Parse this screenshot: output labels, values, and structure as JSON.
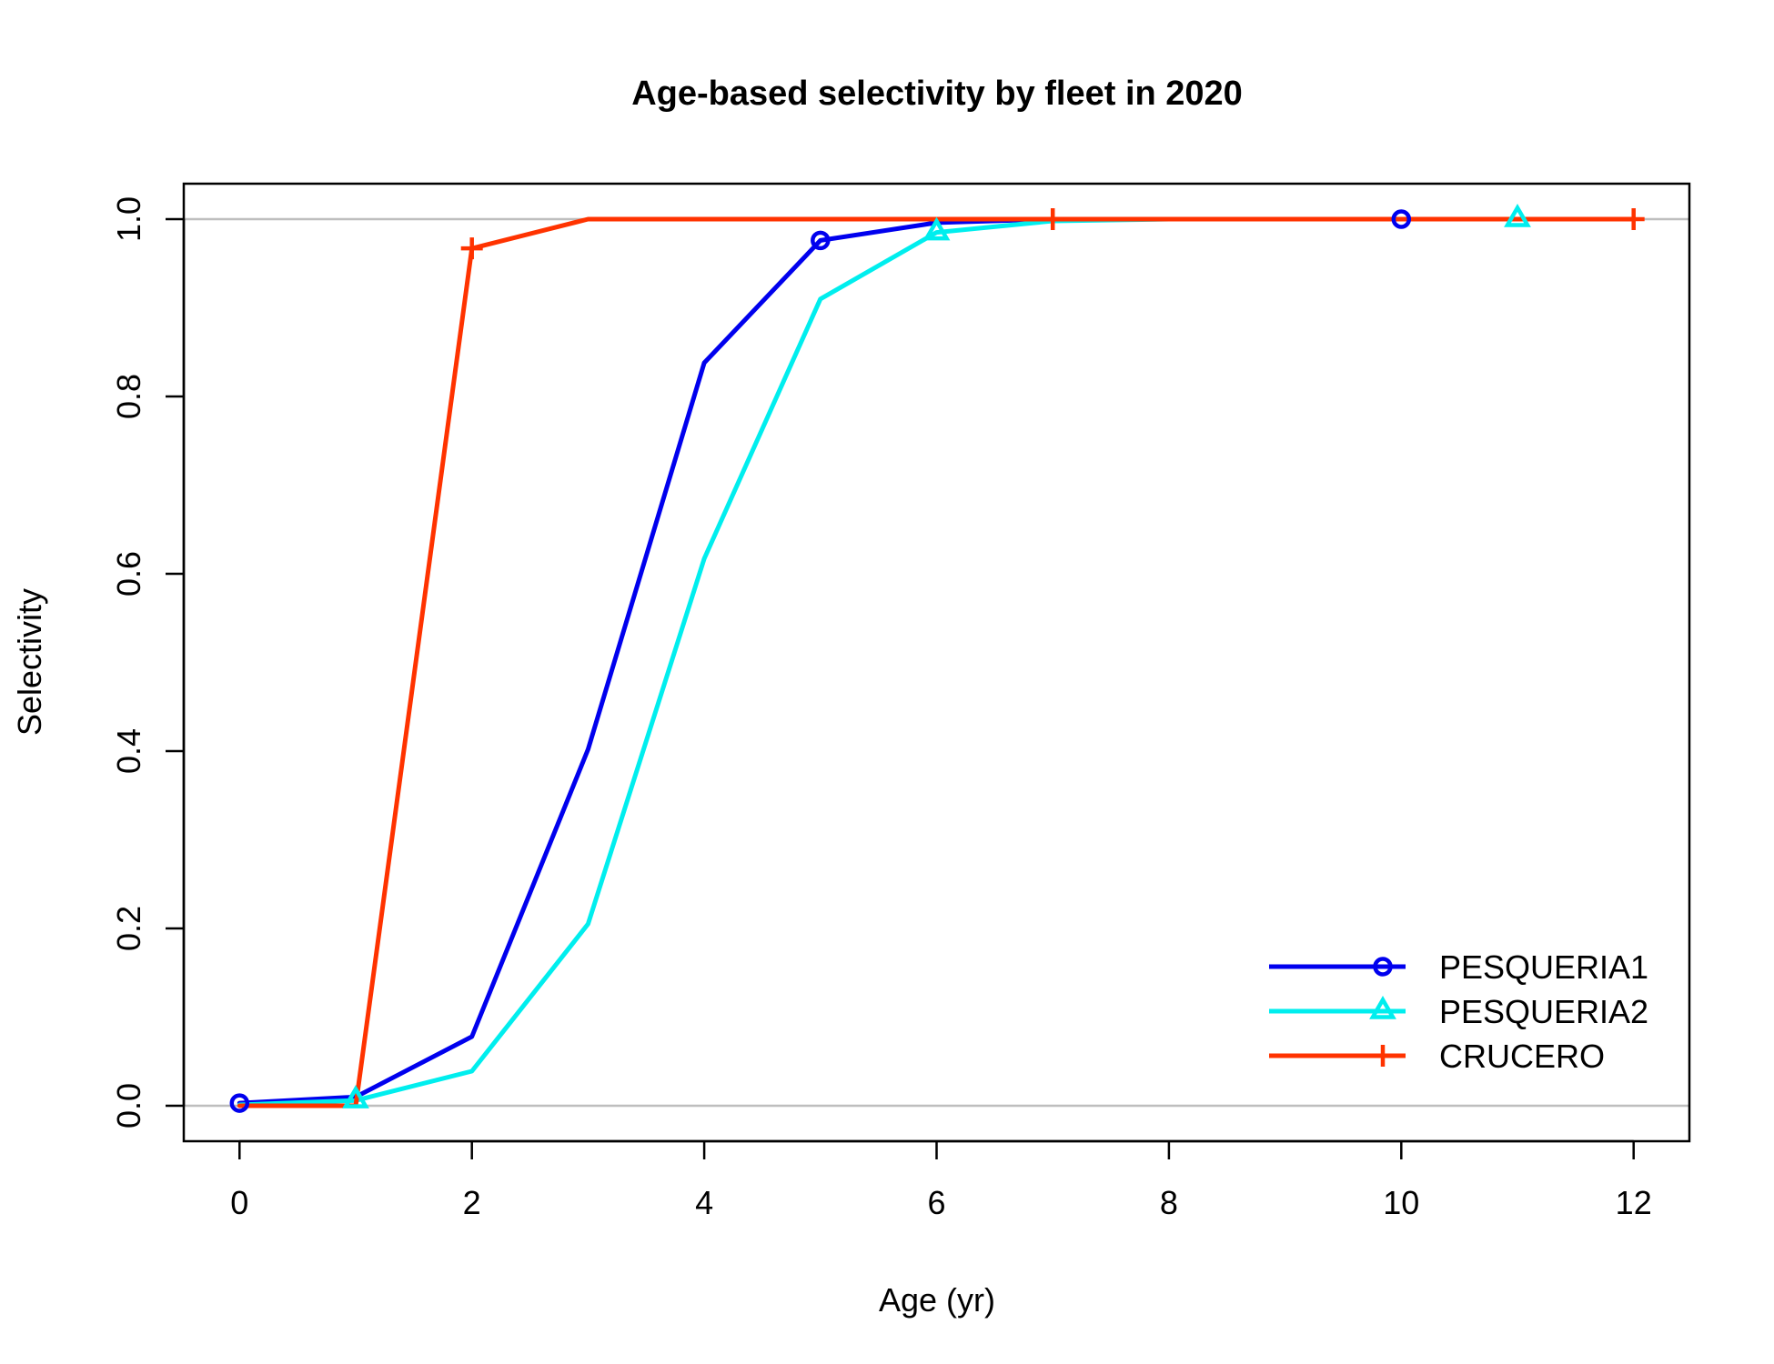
{
  "chart_data": {
    "type": "line",
    "title": "Age-based selectivity by fleet in 2020",
    "xlabel": "Age (yr)",
    "ylabel": "Selectivity",
    "xlim": [
      -0.48,
      12.48
    ],
    "ylim": [
      -0.04,
      1.04
    ],
    "xticks": [
      0,
      2,
      4,
      6,
      8,
      10,
      12
    ],
    "xtick_labels": [
      "0",
      "2",
      "4",
      "6",
      "8",
      "10",
      "12"
    ],
    "yticks": [
      0.0,
      0.2,
      0.4,
      0.6,
      0.8,
      1.0
    ],
    "ytick_labels": [
      "0.0",
      "0.2",
      "0.4",
      "0.6",
      "0.8",
      "1.0"
    ],
    "reference_lines": [
      0,
      1
    ],
    "legend_position": "bottom-right",
    "x": [
      0,
      1,
      2,
      3,
      4,
      5,
      6,
      7,
      8,
      9,
      10,
      11,
      12
    ],
    "series": [
      {
        "name": "PESQUERIA1",
        "color": "#0000ee",
        "marker": "circle",
        "values": [
          0.003,
          0.01,
          0.078,
          0.402,
          0.838,
          0.976,
          0.996,
          1.0,
          1.0,
          1.0,
          1.0,
          1.0,
          1.0
        ],
        "marker_x": [
          0,
          5,
          10
        ]
      },
      {
        "name": "PESQUERIA2",
        "color": "#00eeee",
        "marker": "triangle",
        "values": [
          0.001,
          0.006,
          0.039,
          0.205,
          0.617,
          0.91,
          0.985,
          0.998,
          1.0,
          1.0,
          1.0,
          1.0,
          1.0
        ],
        "marker_x": [
          1,
          6,
          11
        ]
      },
      {
        "name": "CRUCERO",
        "color": "#ff3300",
        "marker": "plus",
        "values": [
          0.0,
          0.0,
          0.967,
          1.0,
          1.0,
          1.0,
          1.0,
          1.0,
          1.0,
          1.0,
          1.0,
          1.0,
          1.0
        ],
        "marker_x": [
          2,
          7,
          12
        ]
      }
    ]
  }
}
